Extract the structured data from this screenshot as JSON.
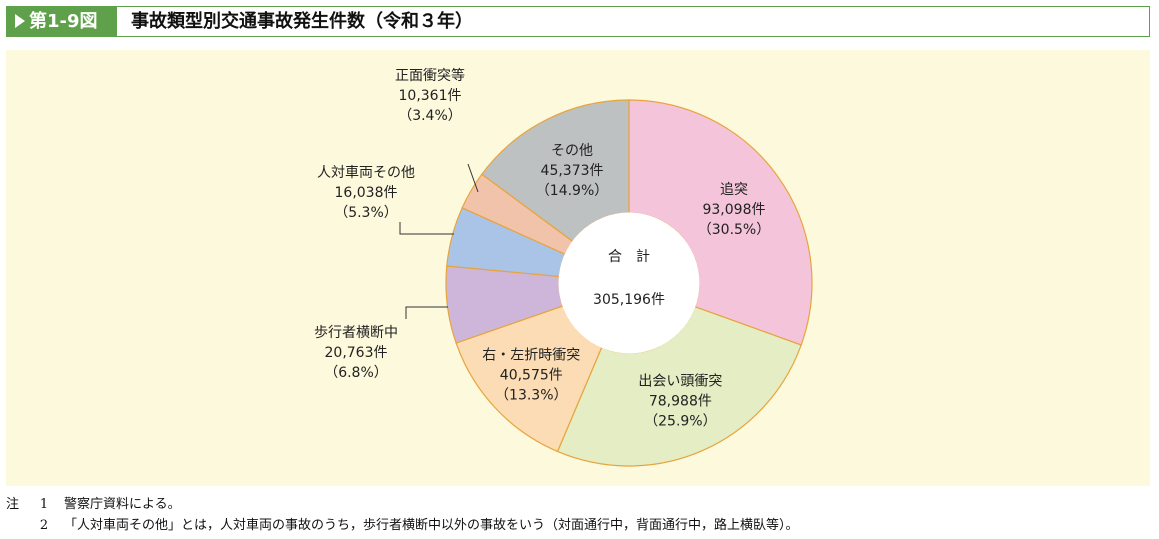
{
  "header": {
    "figure_label": "第1-9図",
    "title": "事故類型別交通事故発生件数（令和３年）"
  },
  "chart_data": {
    "type": "pie",
    "donut": true,
    "center_label": "合　計",
    "center_value": "305,196件",
    "slices": [
      {
        "name": "追突",
        "count": "93,098件",
        "percent": "（30.5%）",
        "value": 93098,
        "color": "#f4c4da"
      },
      {
        "name": "出会い頭衝突",
        "count": "78,988件",
        "percent": "（25.9%）",
        "value": 78988,
        "color": "#e4edc4"
      },
      {
        "name": "右・左折時衝突",
        "count": "40,575件",
        "percent": "（13.3%）",
        "value": 40575,
        "color": "#fbdcb4"
      },
      {
        "name": "歩行者横断中",
        "count": "20,763件",
        "percent": "（6.8%）",
        "value": 20763,
        "color": "#cdb6da"
      },
      {
        "name": "人対車両その他",
        "count": "16,038件",
        "percent": "（5.3%）",
        "value": 16038,
        "color": "#a9c4e6"
      },
      {
        "name": "正面衝突等",
        "count": "10,361件",
        "percent": "（3.4%）",
        "value": 10361,
        "color": "#f0c3aa"
      },
      {
        "name": "その他",
        "count": "45,373件",
        "percent": "（14.9%）",
        "value": 45373,
        "color": "#bdc1c2"
      }
    ],
    "slice_border_color": "#e8a43c"
  },
  "notes": [
    {
      "lead": "注",
      "num": "1",
      "text": "警察庁資料による。"
    },
    {
      "lead": "",
      "num": "2",
      "text": "「人対車両その他」とは，人対車両の事故のうち，歩行者横断中以外の事故をいう（対面通行中，背面通行中，路上横臥等）。"
    }
  ]
}
